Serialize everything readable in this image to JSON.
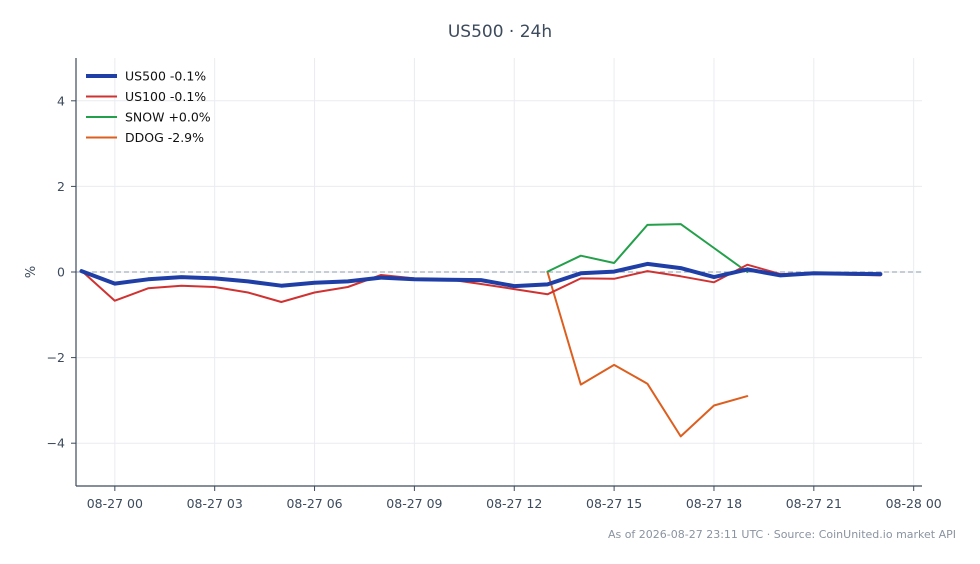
{
  "chart_data": {
    "type": "line",
    "title": "US500 · 24h",
    "ylabel": "%",
    "xlabel": "",
    "ylim": [
      -5,
      5
    ],
    "yticks": [
      {
        "value": 4,
        "label": "4"
      },
      {
        "value": 2,
        "label": "2"
      },
      {
        "value": 0,
        "label": "0"
      },
      {
        "value": -2,
        "label": "−2"
      },
      {
        "value": -4,
        "label": "−4"
      }
    ],
    "xlim": [
      "2026-08-26 22:50",
      "2026-08-28 00:15"
    ],
    "xticks": [
      {
        "value": "2026-08-27 00:00",
        "label": "08-27 00"
      },
      {
        "value": "2026-08-27 03:00",
        "label": "08-27 03"
      },
      {
        "value": "2026-08-27 06:00",
        "label": "08-27 06"
      },
      {
        "value": "2026-08-27 09:00",
        "label": "08-27 09"
      },
      {
        "value": "2026-08-27 12:00",
        "label": "08-27 12"
      },
      {
        "value": "2026-08-27 15:00",
        "label": "08-27 15"
      },
      {
        "value": "2026-08-27 18:00",
        "label": "08-27 18"
      },
      {
        "value": "2026-08-27 21:00",
        "label": "08-27 21"
      },
      {
        "value": "2026-08-28 00:00",
        "label": "08-28 00"
      }
    ],
    "grid": true,
    "zero_line": true,
    "legend_position": "top-left",
    "series": [
      {
        "name": "US500 -0.1%",
        "color": "#1f3fa6",
        "width": 4,
        "points": [
          [
            "2026-08-26 23:00",
            0.02
          ],
          [
            "2026-08-27 00:00",
            -0.27
          ],
          [
            "2026-08-27 01:00",
            -0.17
          ],
          [
            "2026-08-27 02:00",
            -0.12
          ],
          [
            "2026-08-27 03:00",
            -0.15
          ],
          [
            "2026-08-27 04:00",
            -0.22
          ],
          [
            "2026-08-27 05:00",
            -0.32
          ],
          [
            "2026-08-27 06:00",
            -0.25
          ],
          [
            "2026-08-27 07:00",
            -0.22
          ],
          [
            "2026-08-27 08:00",
            -0.13
          ],
          [
            "2026-08-27 09:00",
            -0.17
          ],
          [
            "2026-08-27 10:00",
            -0.18
          ],
          [
            "2026-08-27 11:00",
            -0.19
          ],
          [
            "2026-08-27 12:00",
            -0.33
          ],
          [
            "2026-08-27 13:00",
            -0.29
          ],
          [
            "2026-08-27 14:00",
            -0.03
          ],
          [
            "2026-08-27 15:00",
            0.01
          ],
          [
            "2026-08-27 16:00",
            0.19
          ],
          [
            "2026-08-27 17:00",
            0.09
          ],
          [
            "2026-08-27 18:00",
            -0.12
          ],
          [
            "2026-08-27 19:00",
            0.06
          ],
          [
            "2026-08-27 20:00",
            -0.08
          ],
          [
            "2026-08-27 21:00",
            -0.03
          ],
          [
            "2026-08-27 22:00",
            -0.04
          ],
          [
            "2026-08-27 23:00",
            -0.05
          ]
        ]
      },
      {
        "name": "US100 -0.1%",
        "color": "#d03232",
        "width": 2,
        "points": [
          [
            "2026-08-26 23:00",
            0.03
          ],
          [
            "2026-08-27 00:00",
            -0.67
          ],
          [
            "2026-08-27 01:00",
            -0.38
          ],
          [
            "2026-08-27 02:00",
            -0.32
          ],
          [
            "2026-08-27 03:00",
            -0.35
          ],
          [
            "2026-08-27 04:00",
            -0.48
          ],
          [
            "2026-08-27 05:00",
            -0.7
          ],
          [
            "2026-08-27 06:00",
            -0.48
          ],
          [
            "2026-08-27 07:00",
            -0.35
          ],
          [
            "2026-08-27 08:00",
            -0.07
          ],
          [
            "2026-08-27 09:00",
            -0.15
          ],
          [
            "2026-08-27 10:00",
            -0.17
          ],
          [
            "2026-08-27 11:00",
            -0.28
          ],
          [
            "2026-08-27 12:00",
            -0.4
          ],
          [
            "2026-08-27 13:00",
            -0.52
          ],
          [
            "2026-08-27 14:00",
            -0.15
          ],
          [
            "2026-08-27 15:00",
            -0.16
          ],
          [
            "2026-08-27 16:00",
            0.02
          ],
          [
            "2026-08-27 17:00",
            -0.1
          ],
          [
            "2026-08-27 18:00",
            -0.24
          ],
          [
            "2026-08-27 19:00",
            0.17
          ],
          [
            "2026-08-27 20:00",
            -0.05
          ],
          [
            "2026-08-27 21:00",
            -0.02
          ],
          [
            "2026-08-27 22:00",
            -0.06
          ],
          [
            "2026-08-27 23:00",
            -0.08
          ]
        ]
      },
      {
        "name": "SNOW +0.0%",
        "color": "#23a04a",
        "width": 2,
        "points": [
          [
            "2026-08-27 13:00",
            0.01
          ],
          [
            "2026-08-27 14:00",
            0.38
          ],
          [
            "2026-08-27 15:00",
            0.21
          ],
          [
            "2026-08-27 16:00",
            1.1
          ],
          [
            "2026-08-27 17:00",
            1.12
          ],
          [
            "2026-08-27 18:00",
            0.56
          ],
          [
            "2026-08-27 19:00",
            0.0
          ]
        ]
      },
      {
        "name": "DDOG -2.9%",
        "color": "#dd5f1f",
        "width": 2,
        "points": [
          [
            "2026-08-27 13:00",
            0.0
          ],
          [
            "2026-08-27 14:00",
            -2.63
          ],
          [
            "2026-08-27 15:00",
            -2.17
          ],
          [
            "2026-08-27 16:00",
            -2.61
          ],
          [
            "2026-08-27 17:00",
            -3.84
          ],
          [
            "2026-08-27 18:00",
            -3.12
          ],
          [
            "2026-08-27 19:00",
            -2.9
          ]
        ]
      }
    ]
  },
  "footer": {
    "text": "As of 2026-08-27 23:11 UTC · Source: CoinUnited.io market API"
  },
  "colors": {
    "axis": "#3d4b5c",
    "grid": "#e9ecef",
    "zero_line": "#8a9bb0"
  }
}
